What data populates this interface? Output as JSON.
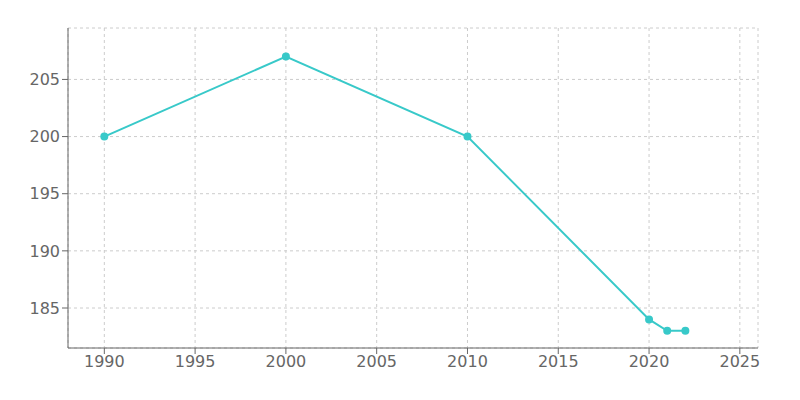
{
  "chart_data": {
    "type": "line",
    "x": [
      1990,
      2000,
      2010,
      2020,
      2021,
      2022
    ],
    "values": [
      200,
      207,
      200,
      184,
      183,
      183
    ],
    "color": "#38c9c9",
    "marker": "circle",
    "grid": true,
    "xlim": [
      1988,
      2026
    ],
    "xticks": [
      1990,
      1995,
      2000,
      2005,
      2010,
      2015,
      2020,
      2025
    ],
    "ylim": [
      181.5,
      209.5
    ],
    "yticks": [
      185,
      190,
      195,
      200,
      205
    ]
  }
}
